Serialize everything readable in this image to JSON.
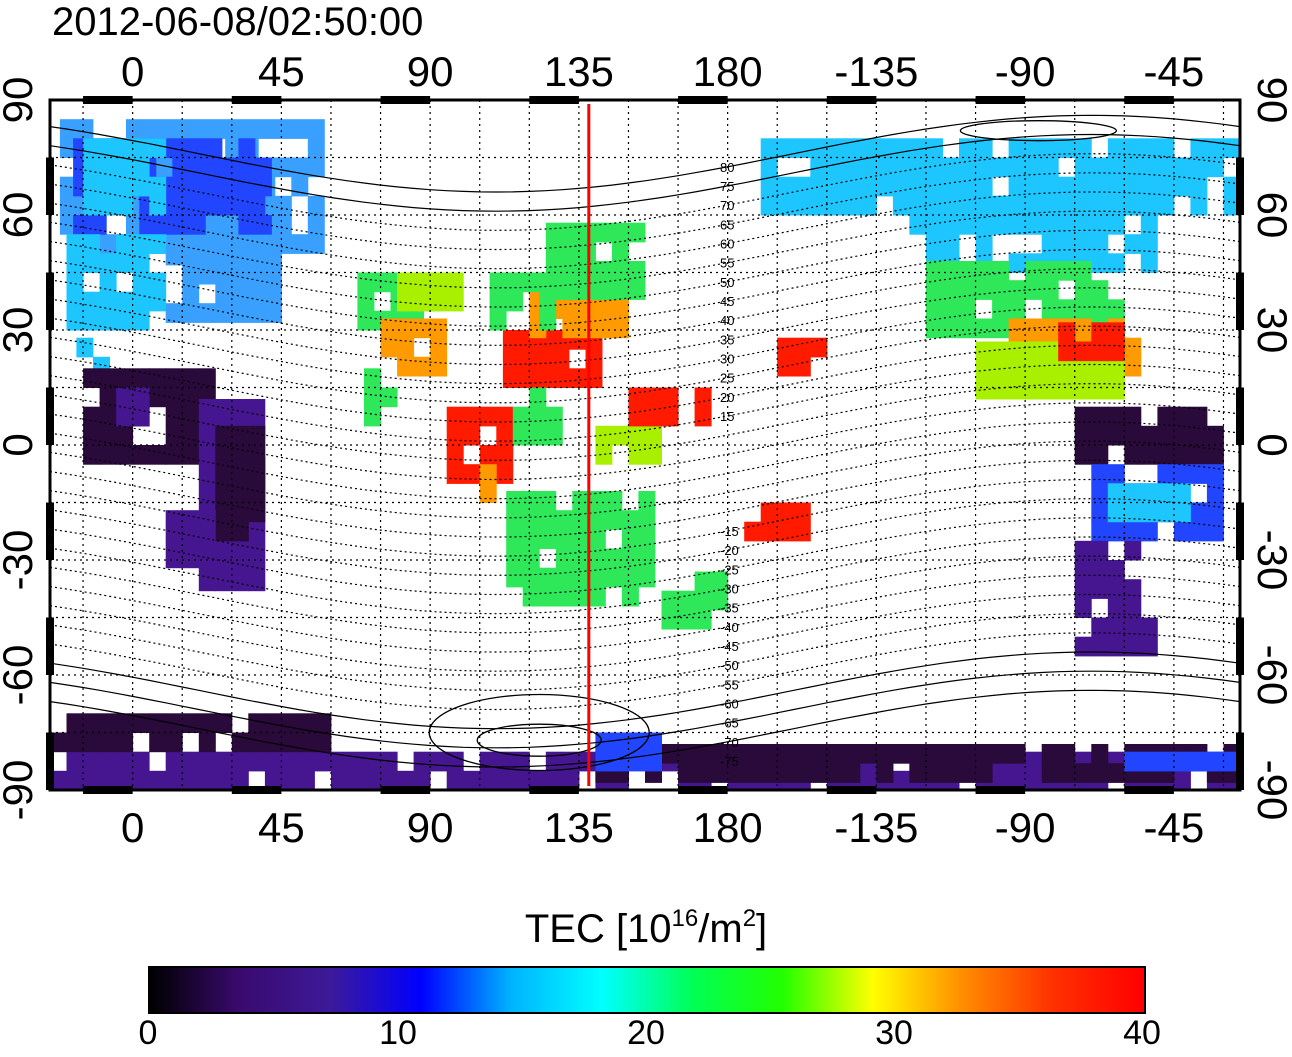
{
  "title": "2012-06-08/02:50:00",
  "map": {
    "projection": "equirectangular",
    "lon_center": 180,
    "top_lon_labels": [
      "0",
      "45",
      "90",
      "135",
      "180",
      "-135",
      "-90",
      "-45"
    ],
    "bottom_lon_labels": [
      "0",
      "45",
      "90",
      "135",
      "180",
      "-135",
      "-90",
      "-45"
    ],
    "left_lat_labels": [
      "90",
      "60",
      "30",
      "0",
      "-30",
      "-60",
      "-90"
    ],
    "right_lat_labels": [
      "90",
      "60",
      "30",
      "0",
      "-30",
      "-60",
      "-90"
    ],
    "grid": "dotted, 15 degree spacing",
    "contour_labels": [
      "80",
      "75",
      "70",
      "65",
      "60",
      "55",
      "50",
      "45",
      "40",
      "35",
      "30",
      "25",
      "20",
      "15",
      "-15",
      "-20",
      "-25",
      "-30",
      "-35",
      "-40",
      "-45",
      "-50",
      "-55",
      "-60",
      "-65",
      "-70",
      "-75"
    ],
    "meridian_marker_lon": 138,
    "meridian_marker_color": "#ff0000"
  },
  "colorbar": {
    "title_prefix": "TEC  [10",
    "title_exp1": "16",
    "title_mid": "/m",
    "title_exp2": "2",
    "title_suffix": "]",
    "min": 0,
    "max": 40,
    "ticks": [
      "0",
      "10",
      "20",
      "30",
      "40"
    ],
    "colors": [
      "#000000",
      "#3a0a6e",
      "#3c1a9a",
      "#0000ff",
      "#00b4ff",
      "#00ffff",
      "#00ff55",
      "#22ff00",
      "#ffff00",
      "#ff8c00",
      "#ff3000",
      "#ff0000"
    ]
  },
  "tec_colors": {
    "very_low": "#2a0a3a",
    "low": "#45168f",
    "blue": "#2246ff",
    "cyan": "#1ec6ff",
    "light_blue": "#3aa0ff",
    "green": "#2ee85a",
    "yellow_green": "#a8f000",
    "orange": "#ff9a00",
    "red": "#ff1a00"
  },
  "chart_data": {
    "type": "heatmap",
    "title": "2012-06-08/02:50:00",
    "xlabel": "",
    "ylabel": "",
    "colorbar_label": "TEC [10^16/m^2]",
    "value_range": [
      0,
      40
    ],
    "x_range_deg": [
      -25,
      335
    ],
    "y_range_deg": [
      -90,
      90
    ],
    "regions": [
      {
        "name": "",
        "lon": [
          -20,
          50
        ],
        "lat": [
          40,
          80
        ],
        "tec": 12
      },
      {
        "name": "",
        "lon": [
          -15,
          30
        ],
        "lat": [
          -35,
          10
        ],
        "tec": 3
      },
      {
        "name": "",
        "lon": [
          65,
          105
        ],
        "lat": [
          20,
          45
        ],
        "tec": 26
      },
      {
        "name": "",
        "lon": [
          110,
          140
        ],
        "lat": [
          15,
          40
        ],
        "tec": 34
      },
      {
        "name": "",
        "lon": [
          95,
          115
        ],
        "lat": [
          -15,
          10
        ],
        "tec": 36
      },
      {
        "name": "",
        "lon": [
          115,
          155
        ],
        "lat": [
          -45,
          -10
        ],
        "tec": 21
      },
      {
        "name": "",
        "lon": [
          230,
          300
        ],
        "lat": [
          20,
          70
        ],
        "tec": 18
      },
      {
        "name": "",
        "lon": [
          275,
          310
        ],
        "lat": [
          0,
          25
        ],
        "tec": 30
      },
      {
        "name": "",
        "lon": [
          280,
          320
        ],
        "lat": [
          -55,
          10
        ],
        "tec": 7
      },
      {
        "name": "",
        "lon": [
          -25,
          335
        ],
        "lat": [
          -90,
          -75
        ],
        "tec": 3
      }
    ]
  }
}
